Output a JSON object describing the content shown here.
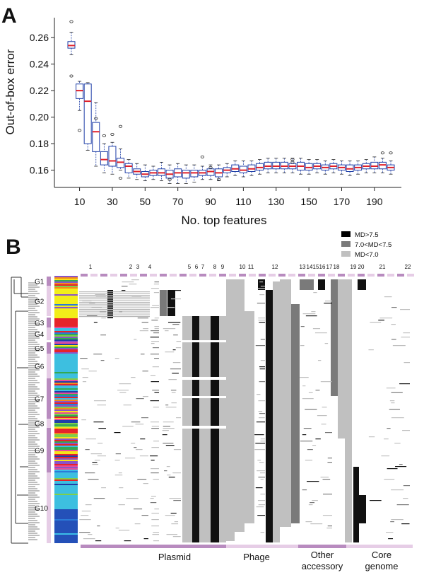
{
  "panel_a": {
    "letter": "A",
    "ylabel": "Out-of-box error",
    "xlabel": "No. top features",
    "yticks": [
      "0.16",
      "0.18",
      "0.20",
      "0.22",
      "0.24",
      "0.26"
    ],
    "xticks": [
      "10",
      "30",
      "50",
      "70",
      "90",
      "110",
      "130",
      "150",
      "170",
      "190"
    ]
  },
  "panel_b": {
    "letter": "B",
    "legend": [
      {
        "label": "MD>7.5",
        "color": "#000000"
      },
      {
        "label": "7.0<MD<7.5",
        "color": "#7a7a7a"
      },
      {
        "label": "MD<7.0",
        "color": "#c0c0c0"
      }
    ],
    "column_numbers": [
      "1",
      "2",
      "3",
      "4",
      "5",
      "6",
      "7",
      "8",
      "9",
      "10",
      "11",
      "12",
      "13",
      "14",
      "15",
      "16",
      "17",
      "18",
      "19",
      "20",
      "21",
      "22"
    ],
    "groups": [
      "G1",
      "G2",
      "G3",
      "G4",
      "G5",
      "G6",
      "G7",
      "G8",
      "G9",
      "G10"
    ],
    "categories": [
      "Plasmid",
      "Phage",
      "Other accessory",
      "Core genome"
    ],
    "category_colors": {
      "Plasmid": "#b88bbf",
      "Phage": "#e6cde6",
      "Other accessory": "#b88bbf",
      "Core genome": "#e6cde6"
    }
  },
  "chart_data": [
    {
      "type": "box",
      "title": "",
      "xlabel": "No. top features",
      "ylabel": "Out-of-box error",
      "ylim": [
        0.147,
        0.275
      ],
      "x": [
        5,
        10,
        15,
        20,
        25,
        30,
        35,
        40,
        45,
        50,
        55,
        60,
        65,
        70,
        75,
        80,
        85,
        90,
        95,
        100,
        105,
        110,
        115,
        120,
        125,
        130,
        135,
        140,
        145,
        150,
        155,
        160,
        165,
        170,
        175,
        180,
        185,
        190,
        195,
        200
      ],
      "medians": [
        0.254,
        0.22,
        0.212,
        0.189,
        0.168,
        0.167,
        0.166,
        0.163,
        0.159,
        0.157,
        0.158,
        0.158,
        0.157,
        0.158,
        0.158,
        0.158,
        0.158,
        0.159,
        0.158,
        0.16,
        0.161,
        0.16,
        0.161,
        0.162,
        0.163,
        0.163,
        0.163,
        0.163,
        0.163,
        0.162,
        0.163,
        0.162,
        0.163,
        0.162,
        0.161,
        0.162,
        0.163,
        0.163,
        0.164,
        0.162
      ],
      "q1": [
        0.252,
        0.214,
        0.18,
        0.174,
        0.164,
        0.163,
        0.162,
        0.158,
        0.157,
        0.155,
        0.156,
        0.156,
        0.154,
        0.155,
        0.154,
        0.155,
        0.156,
        0.156,
        0.155,
        0.158,
        0.159,
        0.158,
        0.159,
        0.16,
        0.161,
        0.161,
        0.161,
        0.161,
        0.16,
        0.16,
        0.161,
        0.16,
        0.161,
        0.16,
        0.159,
        0.16,
        0.161,
        0.161,
        0.161,
        0.16
      ],
      "q3": [
        0.257,
        0.225,
        0.225,
        0.196,
        0.174,
        0.178,
        0.169,
        0.165,
        0.161,
        0.159,
        0.16,
        0.161,
        0.16,
        0.161,
        0.16,
        0.16,
        0.16,
        0.161,
        0.161,
        0.162,
        0.164,
        0.163,
        0.164,
        0.165,
        0.166,
        0.166,
        0.166,
        0.165,
        0.166,
        0.165,
        0.165,
        0.164,
        0.165,
        0.164,
        0.164,
        0.164,
        0.165,
        0.166,
        0.166,
        0.164
      ],
      "whisker_low": [
        0.247,
        0.205,
        0.175,
        0.163,
        0.158,
        0.157,
        0.16,
        0.154,
        0.153,
        0.152,
        0.153,
        0.152,
        0.15,
        0.15,
        0.15,
        0.151,
        0.153,
        0.153,
        0.152,
        0.155,
        0.156,
        0.155,
        0.156,
        0.157,
        0.158,
        0.158,
        0.158,
        0.158,
        0.157,
        0.157,
        0.158,
        0.157,
        0.158,
        0.157,
        0.156,
        0.157,
        0.158,
        0.158,
        0.158,
        0.157
      ],
      "whisker_high": [
        0.264,
        0.227,
        0.226,
        0.211,
        0.18,
        0.181,
        0.176,
        0.168,
        0.165,
        0.164,
        0.163,
        0.166,
        0.164,
        0.165,
        0.164,
        0.164,
        0.163,
        0.164,
        0.164,
        0.165,
        0.167,
        0.167,
        0.167,
        0.168,
        0.169,
        0.169,
        0.169,
        0.169,
        0.169,
        0.168,
        0.168,
        0.167,
        0.168,
        0.167,
        0.167,
        0.167,
        0.168,
        0.17,
        0.169,
        0.167
      ],
      "outliers": [
        [
          5,
          0.272
        ],
        [
          5,
          0.231
        ],
        [
          10,
          0.19
        ],
        [
          20,
          0.199
        ],
        [
          25,
          0.186
        ],
        [
          30,
          0.187
        ],
        [
          35,
          0.193
        ],
        [
          35,
          0.154
        ],
        [
          65,
          0.153
        ],
        [
          85,
          0.17
        ],
        [
          90,
          0.162
        ],
        [
          95,
          0.153
        ],
        [
          140,
          0.168
        ],
        [
          140,
          0.166
        ],
        [
          195,
          0.173
        ],
        [
          200,
          0.173
        ]
      ]
    },
    {
      "type": "heatmap",
      "title": "",
      "legend_title": "",
      "legend": [
        "MD>7.5",
        "7.0<MD<7.5",
        "MD<7.0"
      ],
      "column_labels": [
        "1",
        "2",
        "3",
        "4",
        "5",
        "6",
        "7",
        "8",
        "9",
        "10",
        "11",
        "12",
        "13",
        "14",
        "15",
        "16",
        "17",
        "18",
        "19",
        "20",
        "21",
        "22"
      ],
      "row_groups": [
        "G1",
        "G2",
        "G3",
        "G4",
        "G5",
        "G6",
        "G7",
        "G8",
        "G9",
        "G10"
      ],
      "feature_categories": [
        "Plasmid",
        "Phage",
        "Other accessory",
        "Core genome"
      ]
    }
  ]
}
